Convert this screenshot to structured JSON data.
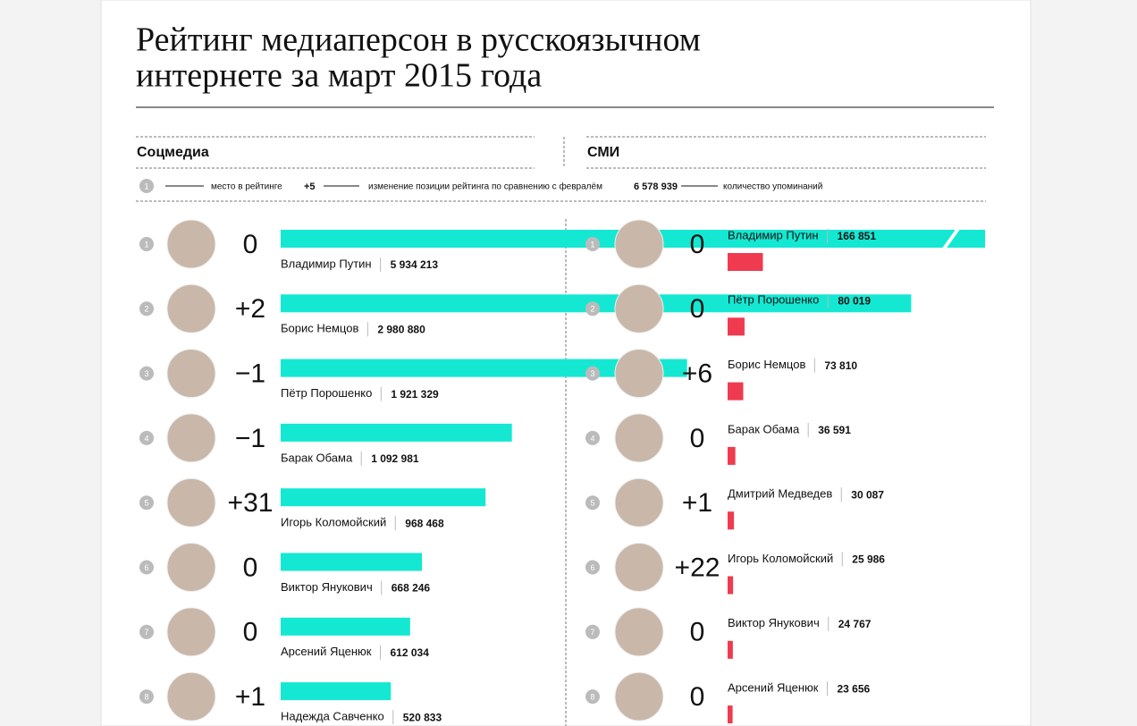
{
  "header": {
    "title_lines": [
      "Рейтинг медиаперсон в русскоязычном",
      "интернете за март 2015 года"
    ]
  },
  "legend": {
    "rank_example": 1,
    "rank_text": "место в рейтинге",
    "change_example": "+5",
    "change_text": "изменение позиции рейтинга по сравнению с февралём",
    "count_example": "6 578 939",
    "count_text": "количество упоминаний"
  },
  "chart_data": [
    {
      "type": "bar",
      "title": "Соцмедиа",
      "color": "#14e8d2",
      "xlim": [
        0,
        3330000
      ],
      "ranks": [
        1,
        2,
        3,
        4,
        5,
        6,
        7,
        8
      ],
      "changes": [
        "0",
        "+2",
        "−1",
        "−1",
        "+31",
        "0",
        "0",
        "+1"
      ],
      "categories": [
        "Владимир Путин",
        "Борис Немцов",
        "Пётр Порошенко",
        "Барак Обама",
        "Игорь Коломойский",
        "Виктор Янукович",
        "Арсений Яценюк",
        "Надежда Савченко"
      ],
      "values": [
        5934213,
        2980880,
        1921329,
        1092981,
        968468,
        668246,
        612034,
        520833
      ],
      "value_labels": [
        "5 934 213",
        "2 980 880",
        "1 921 329",
        "1 092 981",
        "968 468",
        "668 246",
        "612 034",
        "520 833"
      ]
    },
    {
      "type": "bar",
      "title": "СМИ",
      "color": "#f03a4f",
      "xlim": [
        0,
        3330000
      ],
      "ranks": [
        1,
        2,
        3,
        4,
        5,
        6,
        7,
        8
      ],
      "changes": [
        "0",
        "0",
        "+6",
        "0",
        "+1",
        "+22",
        "0",
        "0"
      ],
      "categories": [
        "Владимир Путин",
        "Пётр Порошенко",
        "Борис Немцов",
        "Барак Обама",
        "Дмитрий Медведев",
        "Игорь Коломойский",
        "Виктор Янукович",
        "Арсений Яценюк"
      ],
      "values": [
        166851,
        80019,
        73810,
        36591,
        30087,
        25986,
        24767,
        23656
      ],
      "value_labels": [
        "166 851",
        "80 019",
        "73 810",
        "36 591",
        "30 087",
        "25 986",
        "24 767",
        "23 656"
      ]
    }
  ]
}
